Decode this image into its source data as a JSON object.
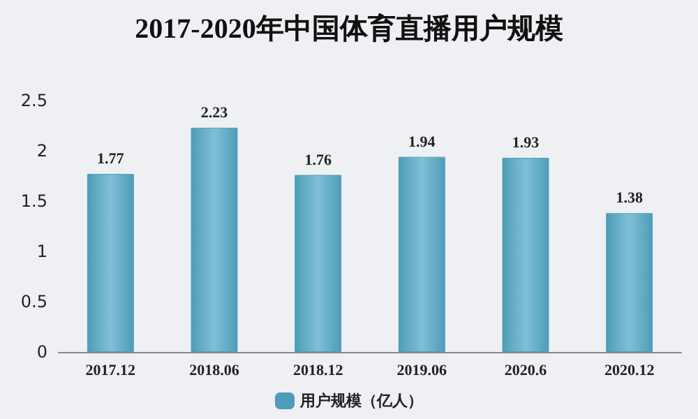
{
  "chart_data": {
    "type": "bar",
    "title": "2017-2020年中国体育直播用户规模",
    "categories": [
      "2017.12",
      "2018.06",
      "2018.12",
      "2019.06",
      "2020.6",
      "2020.12"
    ],
    "series": [
      {
        "name": "用户规模（亿人）",
        "color": "#4f9cb8",
        "values": [
          1.77,
          2.23,
          1.76,
          1.94,
          1.93,
          1.38
        ]
      }
    ],
    "ylim": [
      0,
      2.5
    ],
    "yticks": [
      0,
      0.5,
      1,
      1.5,
      2,
      2.5
    ],
    "grid": false,
    "legend": "bottom",
    "data_labels": true
  }
}
